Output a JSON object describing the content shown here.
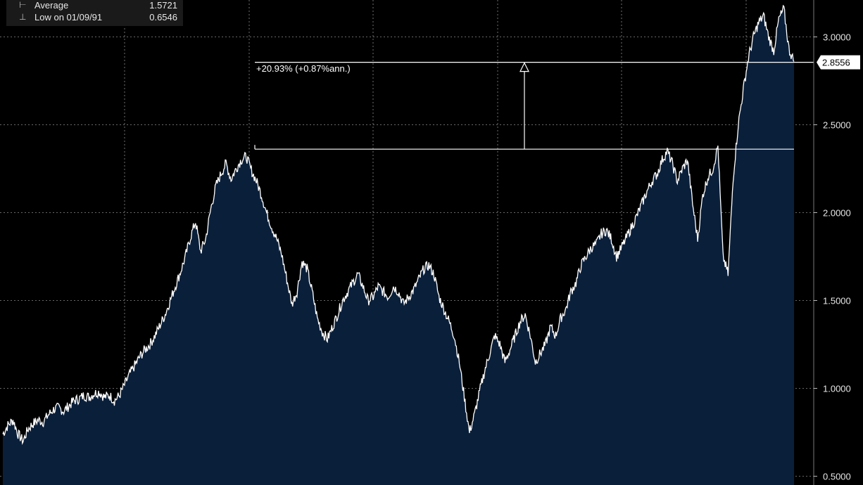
{
  "legend": {
    "row1_label": "Average",
    "row1_value": "1.5721",
    "row2_label": "Low on 01/09/91",
    "row2_value": "0.6546"
  },
  "annotation": {
    "change_text": "+20.93% (+0.87%ann.)",
    "last_value_label": "2.8556"
  },
  "chart_data": {
    "type": "area",
    "title": "",
    "xlabel": "",
    "ylabel": "",
    "ylim": [
      0.5,
      3.2
    ],
    "yticks": [
      0.5,
      1.0,
      1.5,
      2.0,
      2.5,
      3.0
    ],
    "ytick_labels": [
      "0.5000",
      "1.0000",
      "1.5000",
      "2.0000",
      "2.5000",
      "3.0000"
    ],
    "grid": true,
    "fill_color": "#0a1f3a",
    "line_color": "#ffffff",
    "reference_levels": {
      "from": 2.3613,
      "to": 2.8556
    },
    "values": [
      0.74,
      0.79,
      0.82,
      0.74,
      0.7,
      0.77,
      0.8,
      0.82,
      0.81,
      0.85,
      0.88,
      0.89,
      0.87,
      0.9,
      0.93,
      0.94,
      0.96,
      0.95,
      0.97,
      0.98,
      0.95,
      0.96,
      0.93,
      0.96,
      1.02,
      1.08,
      1.13,
      1.18,
      1.22,
      1.25,
      1.3,
      1.36,
      1.42,
      1.5,
      1.58,
      1.66,
      1.75,
      1.86,
      1.95,
      1.78,
      1.85,
      2.02,
      2.15,
      2.22,
      2.28,
      2.19,
      2.25,
      2.3,
      2.32,
      2.24,
      2.18,
      2.1,
      2.0,
      1.92,
      1.85,
      1.76,
      1.62,
      1.48,
      1.55,
      1.72,
      1.68,
      1.55,
      1.4,
      1.32,
      1.28,
      1.35,
      1.42,
      1.5,
      1.55,
      1.6,
      1.65,
      1.58,
      1.5,
      1.52,
      1.58,
      1.55,
      1.52,
      1.58,
      1.55,
      1.48,
      1.52,
      1.56,
      1.62,
      1.68,
      1.7,
      1.65,
      1.52,
      1.45,
      1.38,
      1.3,
      1.15,
      0.95,
      0.75,
      0.85,
      0.98,
      1.1,
      1.2,
      1.3,
      1.25,
      1.15,
      1.22,
      1.3,
      1.38,
      1.42,
      1.3,
      1.15,
      1.2,
      1.25,
      1.35,
      1.3,
      1.4,
      1.45,
      1.55,
      1.6,
      1.7,
      1.75,
      1.8,
      1.82,
      1.88,
      1.9,
      1.85,
      1.75,
      1.8,
      1.86,
      1.92,
      1.98,
      2.05,
      2.12,
      2.18,
      2.22,
      2.3,
      2.35,
      2.28,
      2.18,
      2.25,
      2.3,
      2.05,
      1.85,
      2.1,
      2.2,
      2.25,
      2.38,
      1.75,
      1.65,
      2.2,
      2.5,
      2.7,
      2.88,
      3.0,
      3.08,
      3.12,
      3.0,
      2.92,
      3.1,
      3.16,
      2.93,
      2.86
    ]
  }
}
